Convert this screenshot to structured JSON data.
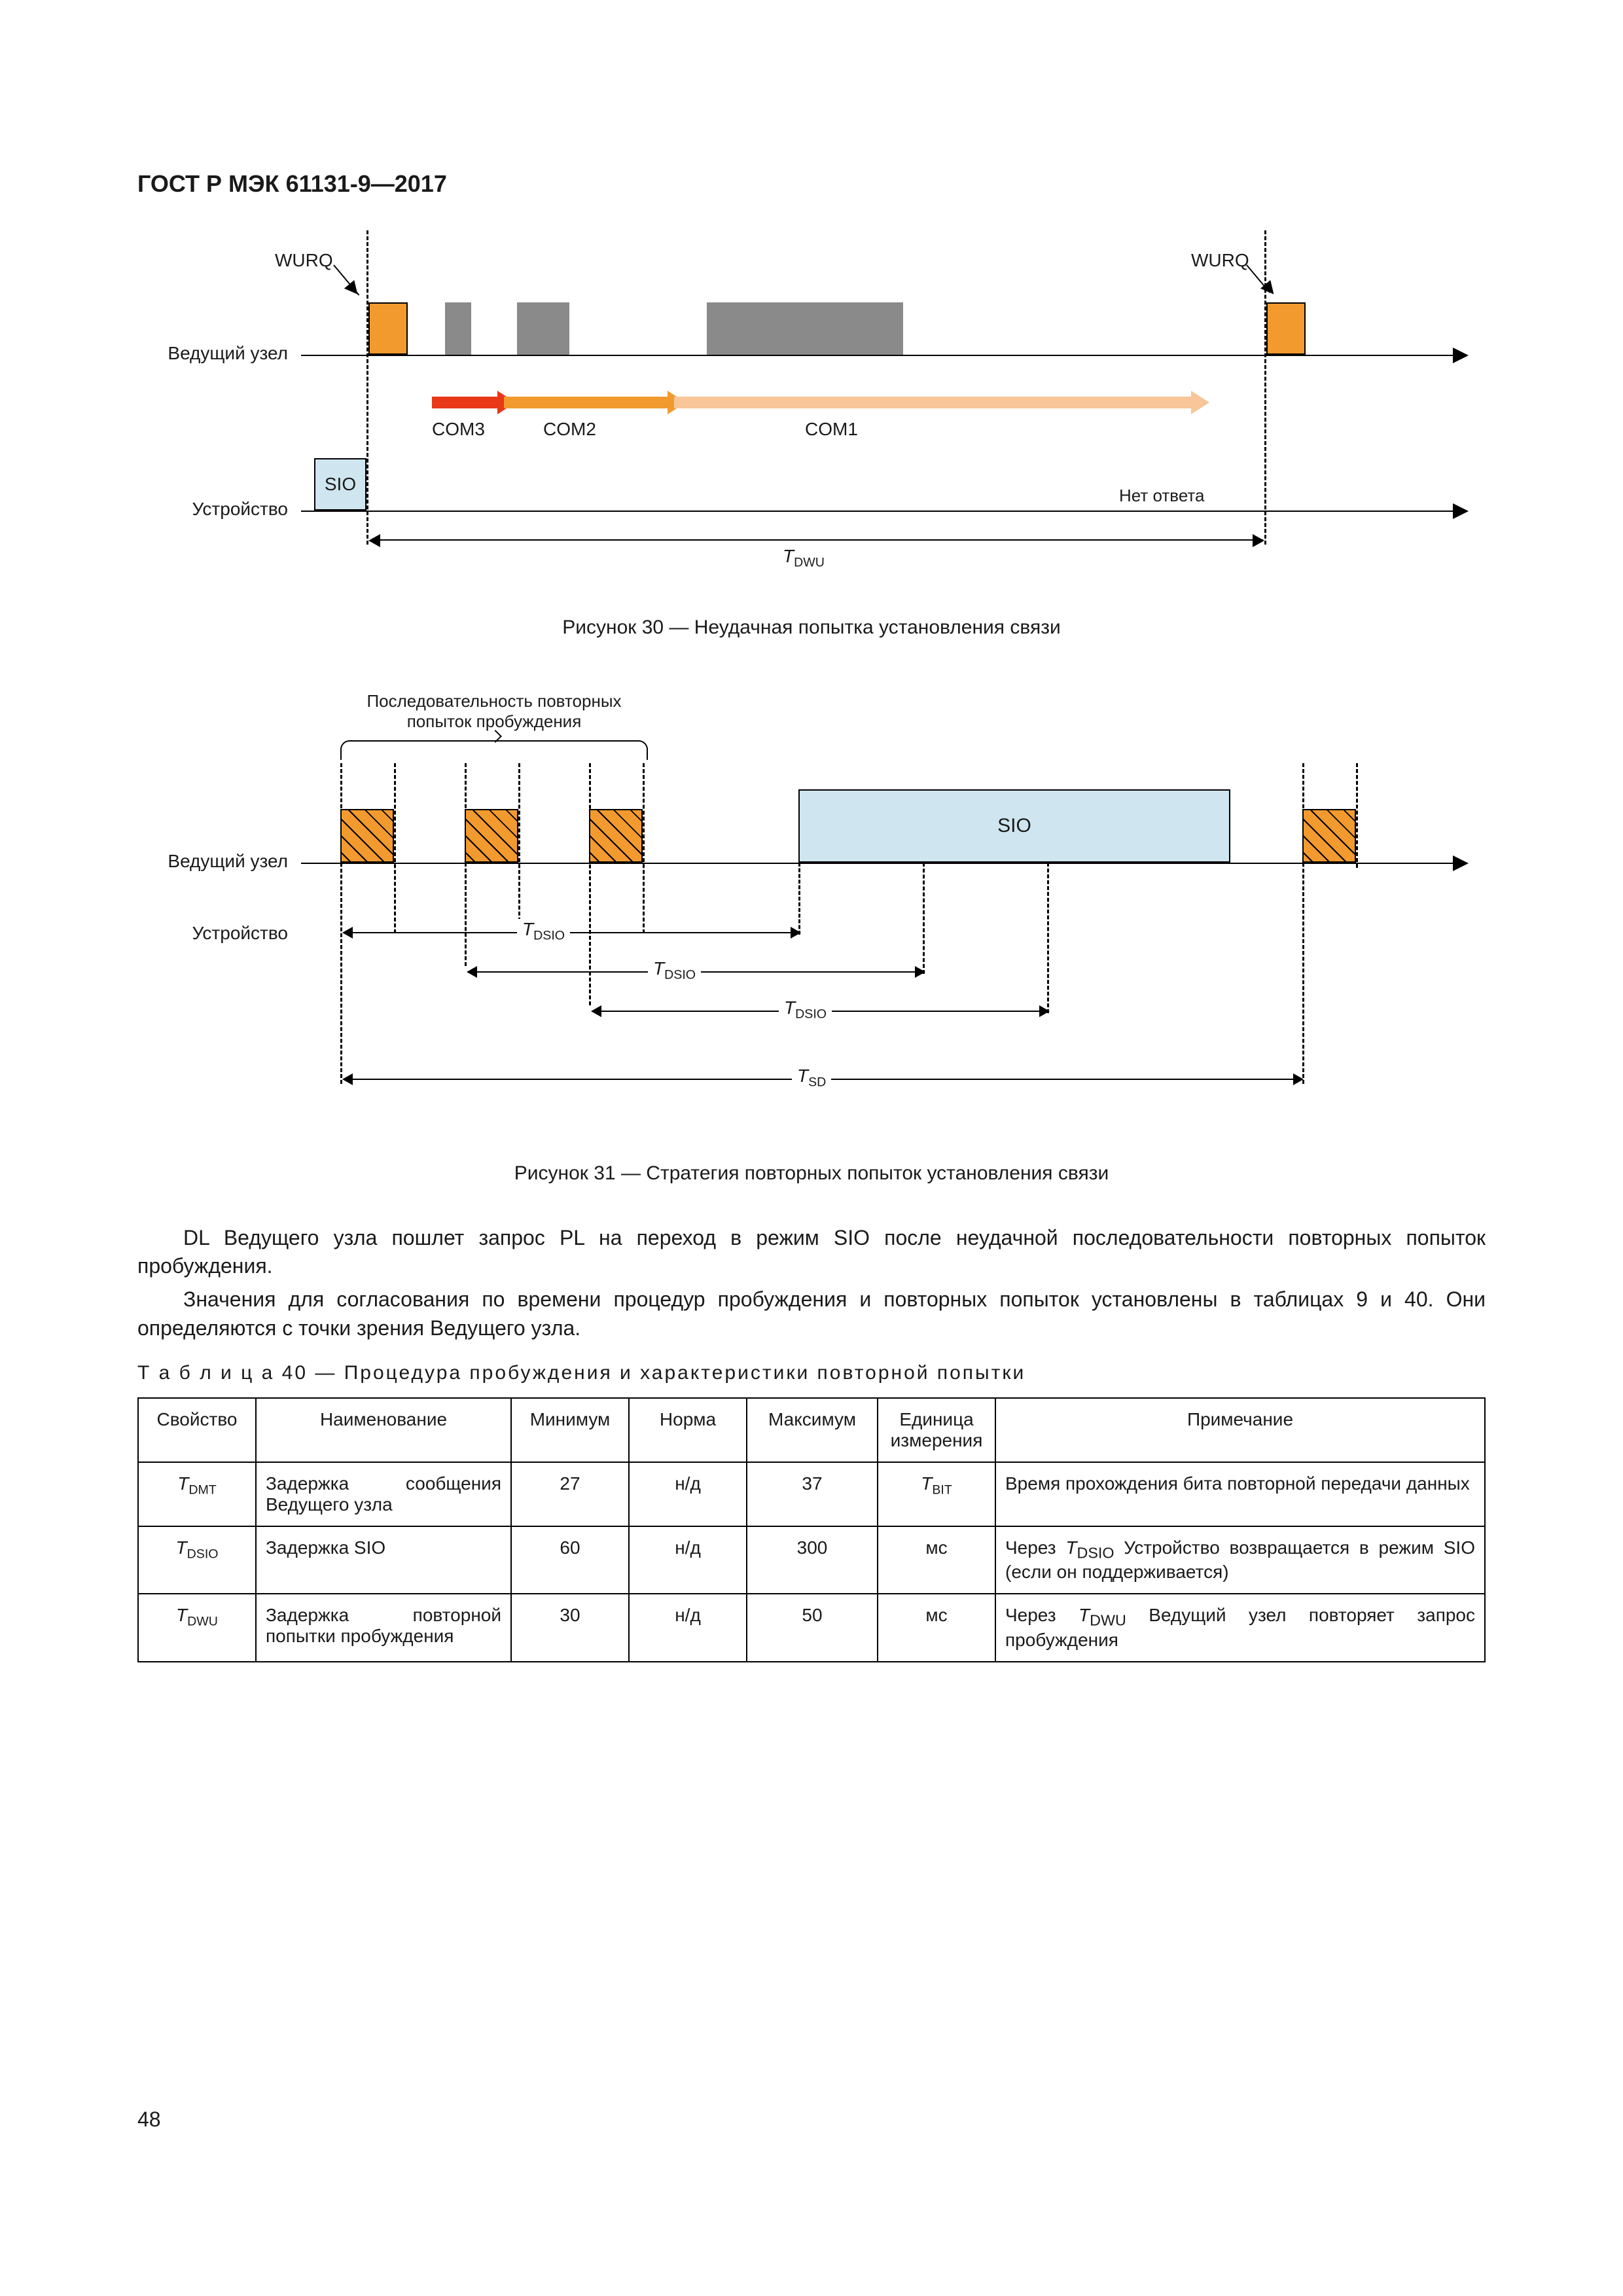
{
  "doc_header": "ГОСТ Р МЭК 61131-9—2017",
  "page_number": "48",
  "figure30": {
    "master_label": "Ведущий узел",
    "device_label": "Устройство",
    "wurq": "WURQ",
    "sio": "SIO",
    "no_answer": "Нет ответа",
    "com1": "COM1",
    "com2": "COM2",
    "com3": "COM3",
    "tdwu_text": "T",
    "tdwu_sub": "DWU",
    "caption": "Рисунок 30 — Неудачная попытка установления связи",
    "colors": {
      "orange": "#f29a2e",
      "grey": "#8a8a8a",
      "sio_bg": "#cfe5f0",
      "arrow_red": "#e83818",
      "arrow_orange": "#f29a2e",
      "arrow_peach": "#f8c698"
    }
  },
  "figure31": {
    "seq_label": "Последовательность повторных попыток пробуждения",
    "master_label": "Ведущий узел",
    "device_label": "Устройство",
    "sio": "SIO",
    "dim_labels": {
      "tdsio": "T",
      "tdsio_sub": "DSIO",
      "tsd": "T",
      "tsd_sub": "SD"
    },
    "caption": "Рисунок 31 — Стратегия повторных попыток установления связи"
  },
  "paragraphs": {
    "p1": "DL Ведущего узла пошлет запрос PL на переход в режим SIO после неудачной последовательности повторных попыток пробуждения.",
    "p2": "Значения для согласования по времени процедур пробуждения и повторных попыток установлены в таблицах 9 и 40. Они определяются с точки зрения Ведущего узла."
  },
  "table": {
    "caption_word": "Т а б л и ц а",
    "caption_rest": " 40 — Процедура пробуждения и характеристики повторной попытки",
    "headers": {
      "prop": "Свойство",
      "name": "Наименование",
      "min": "Минимум",
      "norm": "Норма",
      "max": "Максимум",
      "unit": "Единица измерения",
      "note": "Примечание"
    },
    "rows": [
      {
        "prop": "T",
        "prop_sub": "DMT",
        "name": "Задержка сообщения Ведущего узла",
        "min": "27",
        "norm": "н/д",
        "max": "37",
        "unit": "T",
        "unit_sub": "BIT",
        "note": "Время прохождения бита повторной передачи данных"
      },
      {
        "prop": "T",
        "prop_sub": "DSIO",
        "name": "Задержка SIO",
        "min": "60",
        "norm": "н/д",
        "max": "300",
        "unit": "мс",
        "unit_sub": "",
        "note_html": "Через <i>T</i><sub>DSIO</sub> Устройство возвращается в режим SIO (если он поддерживается)"
      },
      {
        "prop": "T",
        "prop_sub": "DWU",
        "name": "Задержка повторной попытки пробуждения",
        "min": "30",
        "norm": "н/д",
        "max": "50",
        "unit": "мс",
        "unit_sub": "",
        "note_html": "Через <i>T</i><sub>DWU</sub> Ведущий узел повторяет запрос пробуждения"
      }
    ],
    "col_widths": [
      "180px",
      "390px",
      "180px",
      "180px",
      "200px",
      "180px",
      "auto"
    ]
  }
}
